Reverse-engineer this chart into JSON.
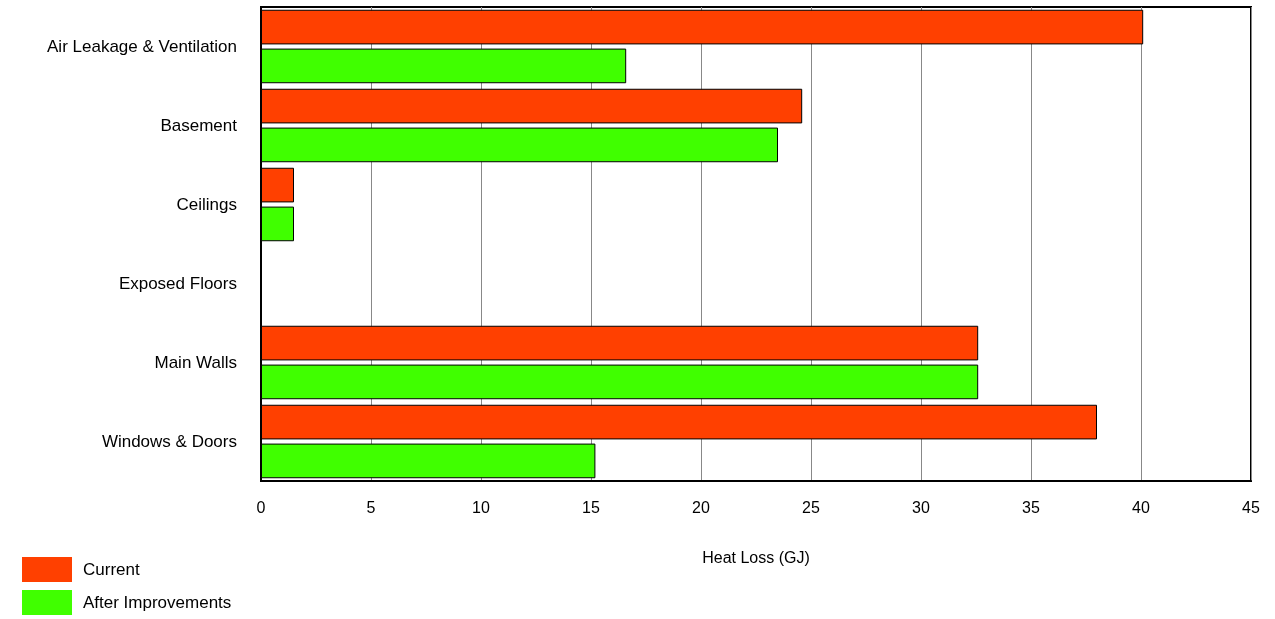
{
  "chart_data": {
    "type": "bar",
    "orientation": "horizontal",
    "xlabel": "Heat Loss (GJ)",
    "categories": [
      "Air Leakage & Ventilation",
      "Basement",
      "Ceilings",
      "Exposed Floors",
      "Main Walls",
      "Windows & Doors"
    ],
    "series": [
      {
        "name": "Current",
        "color": "#ff4000",
        "values": [
          40.1,
          24.6,
          1.5,
          0,
          32.6,
          38.0
        ]
      },
      {
        "name": "After Improvements",
        "color": "#40ff00",
        "values": [
          16.6,
          23.5,
          1.5,
          0,
          32.6,
          15.2
        ]
      }
    ],
    "xlim": [
      0,
      45
    ],
    "xticks": [
      0,
      5,
      10,
      15,
      20,
      25,
      30,
      35,
      40,
      45
    ],
    "grid": "x",
    "legend": "bottom left"
  }
}
